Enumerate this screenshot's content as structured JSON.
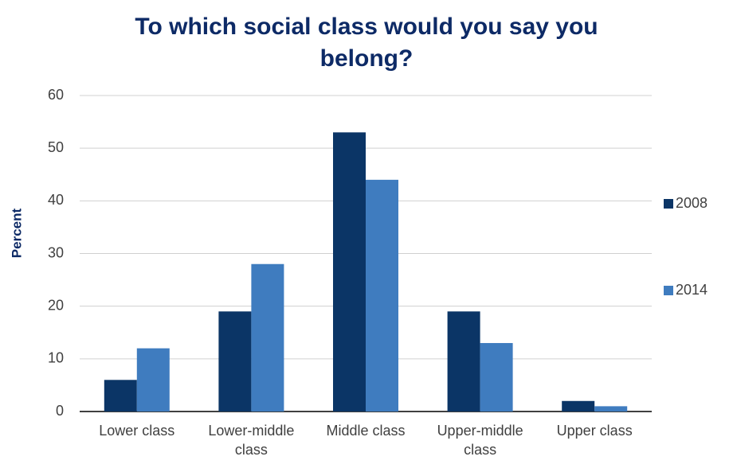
{
  "chart_data": {
    "type": "bar",
    "title": "To which social class would you say you belong?",
    "y_label": "Percent",
    "categories": [
      "Lower class",
      "Lower-middle class",
      "Middle class",
      "Upper-middle class",
      "Upper class"
    ],
    "series": [
      {
        "name": "2008",
        "color": "#0b3566",
        "values": [
          6,
          19,
          53,
          19,
          2
        ]
      },
      {
        "name": "2014",
        "color": "#3f7cbf",
        "values": [
          12,
          28,
          44,
          13,
          1
        ]
      }
    ],
    "ylim": [
      0,
      60
    ],
    "yticks": [
      0,
      10,
      20,
      30,
      40,
      50,
      60
    ],
    "grid": true,
    "legend": "right"
  }
}
